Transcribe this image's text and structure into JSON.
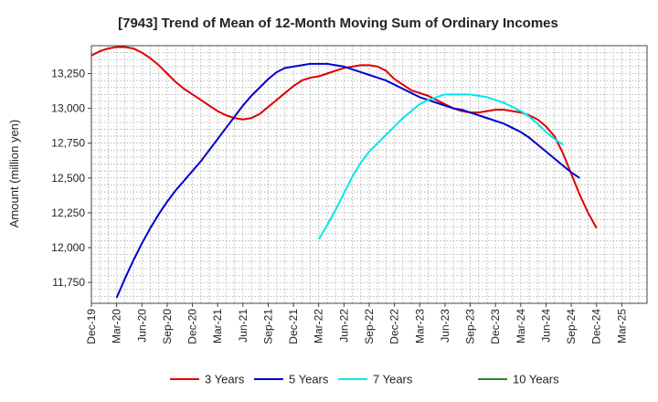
{
  "chart_data": {
    "type": "line",
    "title": "[7943]  Trend of Mean of 12-Month Moving Sum of Ordinary Incomes",
    "xlabel": "",
    "ylabel": "Amount (million yen)",
    "ylim": [
      11600,
      13450
    ],
    "yticks": [
      11750,
      12000,
      12250,
      12500,
      12750,
      13000,
      13250
    ],
    "ytick_labels": [
      "11,750",
      "12,000",
      "12,250",
      "12,500",
      "12,750",
      "13,000",
      "13,250"
    ],
    "x_range": [
      0,
      66
    ],
    "x_ticks": [
      {
        "i": 0,
        "label": "Dec-19"
      },
      {
        "i": 3,
        "label": "Mar-20"
      },
      {
        "i": 6,
        "label": "Jun-20"
      },
      {
        "i": 9,
        "label": "Sep-20"
      },
      {
        "i": 12,
        "label": "Dec-20"
      },
      {
        "i": 15,
        "label": "Mar-21"
      },
      {
        "i": 18,
        "label": "Jun-21"
      },
      {
        "i": 21,
        "label": "Sep-21"
      },
      {
        "i": 24,
        "label": "Dec-21"
      },
      {
        "i": 27,
        "label": "Mar-22"
      },
      {
        "i": 30,
        "label": "Jun-22"
      },
      {
        "i": 33,
        "label": "Sep-22"
      },
      {
        "i": 36,
        "label": "Dec-22"
      },
      {
        "i": 39,
        "label": "Mar-23"
      },
      {
        "i": 42,
        "label": "Jun-23"
      },
      {
        "i": 45,
        "label": "Sep-23"
      },
      {
        "i": 48,
        "label": "Dec-23"
      },
      {
        "i": 51,
        "label": "Mar-24"
      },
      {
        "i": 54,
        "label": "Jun-24"
      },
      {
        "i": 57,
        "label": "Sep-24"
      },
      {
        "i": 60,
        "label": "Dec-24"
      },
      {
        "i": 63,
        "label": "Mar-25"
      }
    ],
    "grid": true,
    "legend_position": "bottom",
    "series": [
      {
        "name": "3 Years",
        "color": "#dd0000",
        "points": [
          [
            0,
            13380
          ],
          [
            1,
            13410
          ],
          [
            2,
            13430
          ],
          [
            3,
            13440
          ],
          [
            4,
            13440
          ],
          [
            5,
            13430
          ],
          [
            6,
            13400
          ],
          [
            7,
            13360
          ],
          [
            8,
            13310
          ],
          [
            9,
            13250
          ],
          [
            10,
            13190
          ],
          [
            11,
            13140
          ],
          [
            12,
            13100
          ],
          [
            13,
            13060
          ],
          [
            14,
            13020
          ],
          [
            15,
            12980
          ],
          [
            16,
            12950
          ],
          [
            17,
            12930
          ],
          [
            18,
            12920
          ],
          [
            19,
            12930
          ],
          [
            20,
            12960
          ],
          [
            21,
            13010
          ],
          [
            22,
            13060
          ],
          [
            23,
            13110
          ],
          [
            24,
            13160
          ],
          [
            25,
            13200
          ],
          [
            26,
            13220
          ],
          [
            27,
            13230
          ],
          [
            28,
            13250
          ],
          [
            29,
            13270
          ],
          [
            30,
            13290
          ],
          [
            31,
            13300
          ],
          [
            32,
            13310
          ],
          [
            33,
            13310
          ],
          [
            34,
            13300
          ],
          [
            35,
            13270
          ],
          [
            36,
            13210
          ],
          [
            37,
            13170
          ],
          [
            38,
            13130
          ],
          [
            39,
            13110
          ],
          [
            40,
            13090
          ],
          [
            41,
            13060
          ],
          [
            42,
            13030
          ],
          [
            43,
            13000
          ],
          [
            44,
            12980
          ],
          [
            45,
            12970
          ],
          [
            46,
            12970
          ],
          [
            47,
            12980
          ],
          [
            48,
            12990
          ],
          [
            49,
            12990
          ],
          [
            50,
            12980
          ],
          [
            51,
            12970
          ],
          [
            52,
            12950
          ],
          [
            53,
            12920
          ],
          [
            54,
            12870
          ],
          [
            55,
            12800
          ],
          [
            56,
            12680
          ],
          [
            57,
            12530
          ],
          [
            58,
            12380
          ],
          [
            59,
            12250
          ],
          [
            60,
            12140
          ]
        ]
      },
      {
        "name": "5 Years",
        "color": "#0000cc",
        "points": [
          [
            3,
            11640
          ],
          [
            4,
            11780
          ],
          [
            5,
            11910
          ],
          [
            6,
            12030
          ],
          [
            7,
            12140
          ],
          [
            8,
            12240
          ],
          [
            9,
            12330
          ],
          [
            10,
            12410
          ],
          [
            11,
            12480
          ],
          [
            12,
            12550
          ],
          [
            13,
            12620
          ],
          [
            14,
            12700
          ],
          [
            15,
            12780
          ],
          [
            16,
            12860
          ],
          [
            17,
            12940
          ],
          [
            18,
            13020
          ],
          [
            19,
            13090
          ],
          [
            20,
            13150
          ],
          [
            21,
            13210
          ],
          [
            22,
            13260
          ],
          [
            23,
            13290
          ],
          [
            24,
            13300
          ],
          [
            25,
            13310
          ],
          [
            26,
            13320
          ],
          [
            27,
            13320
          ],
          [
            28,
            13320
          ],
          [
            29,
            13310
          ],
          [
            30,
            13300
          ],
          [
            31,
            13280
          ],
          [
            32,
            13260
          ],
          [
            33,
            13240
          ],
          [
            34,
            13220
          ],
          [
            35,
            13200
          ],
          [
            36,
            13170
          ],
          [
            37,
            13140
          ],
          [
            38,
            13110
          ],
          [
            39,
            13080
          ],
          [
            40,
            13060
          ],
          [
            41,
            13040
          ],
          [
            42,
            13020
          ],
          [
            43,
            13000
          ],
          [
            44,
            12990
          ],
          [
            45,
            12970
          ],
          [
            46,
            12950
          ],
          [
            47,
            12930
          ],
          [
            48,
            12910
          ],
          [
            49,
            12890
          ],
          [
            50,
            12860
          ],
          [
            51,
            12830
          ],
          [
            52,
            12790
          ],
          [
            53,
            12740
          ],
          [
            54,
            12690
          ],
          [
            55,
            12640
          ],
          [
            56,
            12590
          ],
          [
            57,
            12540
          ],
          [
            58,
            12500
          ]
        ]
      },
      {
        "name": "7 Years",
        "color": "#00e8e8",
        "points": [
          [
            27,
            12060
          ],
          [
            28,
            12160
          ],
          [
            29,
            12270
          ],
          [
            30,
            12390
          ],
          [
            31,
            12510
          ],
          [
            32,
            12610
          ],
          [
            33,
            12690
          ],
          [
            34,
            12750
          ],
          [
            35,
            12810
          ],
          [
            36,
            12870
          ],
          [
            37,
            12930
          ],
          [
            38,
            12980
          ],
          [
            39,
            13030
          ],
          [
            40,
            13060
          ],
          [
            41,
            13080
          ],
          [
            42,
            13100
          ],
          [
            43,
            13100
          ],
          [
            44,
            13100
          ],
          [
            45,
            13100
          ],
          [
            46,
            13090
          ],
          [
            47,
            13080
          ],
          [
            48,
            13060
          ],
          [
            49,
            13040
          ],
          [
            50,
            13010
          ],
          [
            51,
            12980
          ],
          [
            52,
            12940
          ],
          [
            53,
            12890
          ],
          [
            54,
            12830
          ],
          [
            55,
            12780
          ],
          [
            56,
            12740
          ]
        ]
      },
      {
        "name": "10 Years",
        "color": "#228b22",
        "points": []
      }
    ]
  }
}
